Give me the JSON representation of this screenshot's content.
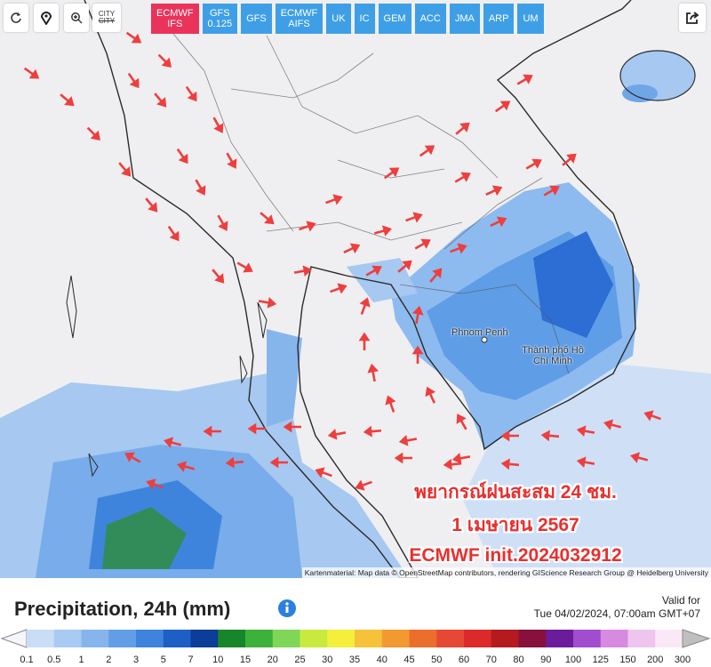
{
  "toolbar": {
    "city_label": "CITY"
  },
  "models": [
    {
      "label": "ECMWF IFS",
      "active": true
    },
    {
      "label": "GFS 0.125",
      "active": false
    },
    {
      "label": "GFS",
      "active": false
    },
    {
      "label": "ECMWF AIFS",
      "active": false
    },
    {
      "label": "UK",
      "active": false
    },
    {
      "label": "IC",
      "active": false
    },
    {
      "label": "GEM",
      "active": false
    },
    {
      "label": "ACC",
      "active": false
    },
    {
      "label": "JMA",
      "active": false
    },
    {
      "label": "ARP",
      "active": false
    },
    {
      "label": "UM",
      "active": false
    }
  ],
  "map": {
    "places": [
      "Phnom Penh",
      "Thành phố Hồ Chí Minh"
    ],
    "overlay_lines": [
      "พยากรณ์ฝนสะสม 24 ชม.",
      "1 เมษายน 2567",
      "ECMWF init.2024032912"
    ],
    "attribution": "Kartenmaterial: Map data © OpenStreetMap contributors, rendering GIScience Research Group @ Heidelberg University"
  },
  "legend": {
    "title": "Precipitation, 24h (mm)",
    "valid_label": "Valid for",
    "valid_time": "Tue 04/02/2024, 07:00am GMT+07",
    "ticks": [
      0.1,
      0.5,
      1,
      2,
      3,
      5,
      7,
      10,
      15,
      20,
      25,
      30,
      35,
      40,
      45,
      50,
      60,
      70,
      80,
      90,
      100,
      125,
      150,
      200,
      300
    ],
    "colors": [
      "#c9ddf6",
      "#a9caf2",
      "#86b5ec",
      "#619ee6",
      "#3f84dc",
      "#1e5fc6",
      "#0c3d98",
      "#17862a",
      "#3db23a",
      "#7fd657",
      "#c8ea3e",
      "#f3ef3a",
      "#f5c23a",
      "#f29a30",
      "#ec6e2c",
      "#e64836",
      "#dc2a2a",
      "#b41a1e",
      "#88103c",
      "#6b1c9a",
      "#a24cd0",
      "#d68ae0",
      "#efc5ef",
      "#fae8f7"
    ]
  }
}
